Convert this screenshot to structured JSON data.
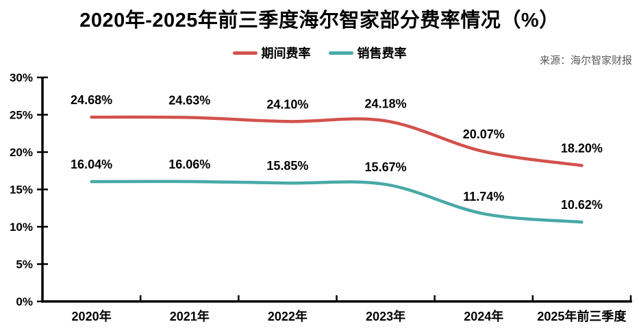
{
  "title": "2020年-2025年前三季度海尔智家部分费率情况（%）",
  "source": "来源：海尔智家财报",
  "colors": {
    "period_expense_line": "#D2524C",
    "selling_expense_line": "#48A9A7",
    "axis": "#000000",
    "label_text": "#000000",
    "source_text": "#595959",
    "background": "#FFFFFF"
  },
  "chart_data": {
    "type": "line",
    "smooth": true,
    "grid": false,
    "legend_position": "top-center",
    "categories": [
      "2020年",
      "2021年",
      "2022年",
      "2023年",
      "2024年",
      "2025年前三季度"
    ],
    "series": [
      {
        "name": "期间费率",
        "key": "period-expense-ratio",
        "color": "#D2524C",
        "values": [
          24.68,
          24.63,
          24.1,
          24.18,
          20.07,
          18.2
        ],
        "labels": [
          "24.68%",
          "24.63%",
          "24.10%",
          "24.18%",
          "20.07%",
          "18.20%"
        ]
      },
      {
        "name": "销售费率",
        "key": "selling-expense-ratio",
        "color": "#48A9A7",
        "values": [
          16.04,
          16.06,
          15.85,
          15.67,
          11.74,
          10.62
        ],
        "labels": [
          "16.04%",
          "16.06%",
          "15.85%",
          "15.67%",
          "11.74%",
          "10.62%"
        ]
      }
    ],
    "ylim": [
      0,
      30
    ],
    "ytick_step": 5,
    "ytick_labels": [
      "0%",
      "5%",
      "10%",
      "15%",
      "20%",
      "25%",
      "30%"
    ],
    "xlabel": "",
    "ylabel": ""
  }
}
